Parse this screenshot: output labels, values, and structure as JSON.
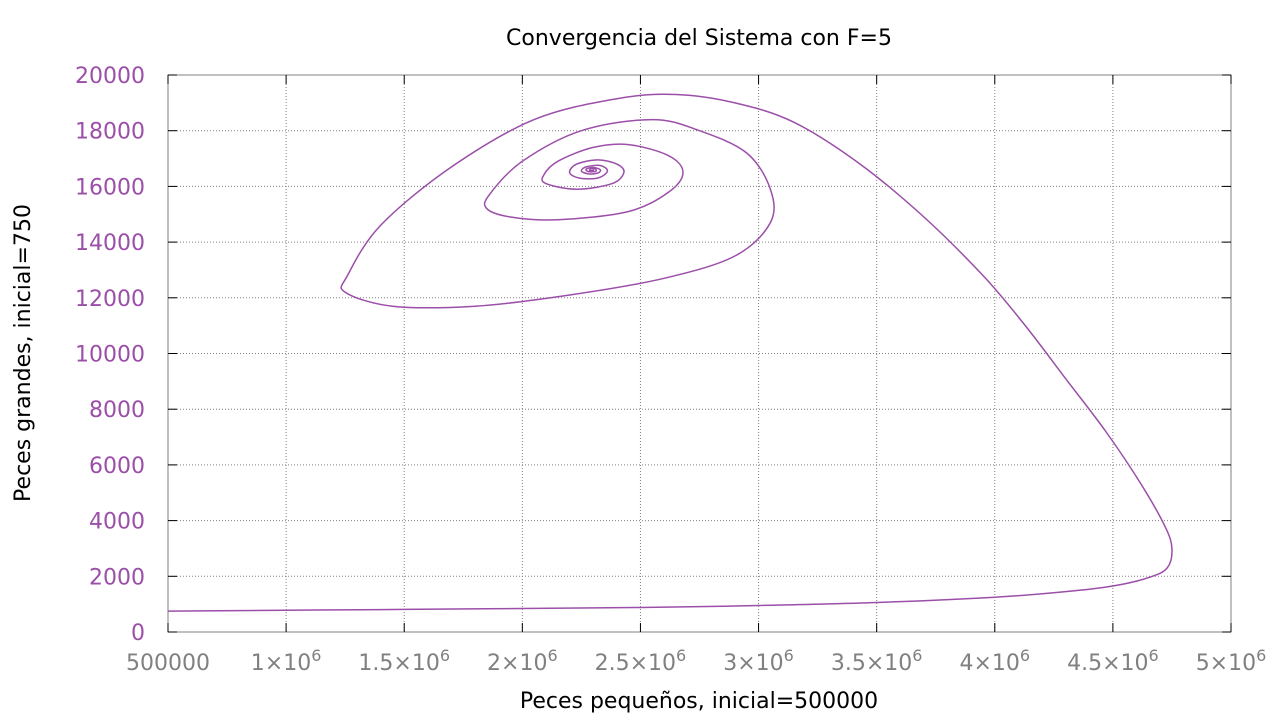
{
  "colors": {
    "series": "#9b4fa8",
    "ytick": "#9b4fa8",
    "xtick": "#808080",
    "grid": "#808080",
    "axis": "#000000"
  },
  "chart_data": {
    "type": "line",
    "title": "Convergencia del Sistema con F=5",
    "xlabel": "Peces pequeños, inicial=500000",
    "ylabel": "Peces grandes, inicial=750",
    "xlim": [
      500000,
      5000000
    ],
    "ylim": [
      0,
      20000
    ],
    "grid": true,
    "legend": "none",
    "xticks": [
      {
        "value": 500000,
        "mant": "500000",
        "sup": ""
      },
      {
        "value": 1000000,
        "mant": "1×10",
        "sup": "6"
      },
      {
        "value": 1500000,
        "mant": "1.5×10",
        "sup": "6"
      },
      {
        "value": 2000000,
        "mant": "2×10",
        "sup": "6"
      },
      {
        "value": 2500000,
        "mant": "2.5×10",
        "sup": "6"
      },
      {
        "value": 3000000,
        "mant": "3×10",
        "sup": "6"
      },
      {
        "value": 3500000,
        "mant": "3.5×10",
        "sup": "6"
      },
      {
        "value": 4000000,
        "mant": "4×10",
        "sup": "6"
      },
      {
        "value": 4500000,
        "mant": "4.5×10",
        "sup": "6"
      },
      {
        "value": 5000000,
        "mant": "5×10",
        "sup": "6"
      }
    ],
    "yticks": [
      "0",
      "2000",
      "4000",
      "6000",
      "8000",
      "10000",
      "12000",
      "14000",
      "16000",
      "18000",
      "20000"
    ],
    "series": [
      {
        "points": [
          [
            500000,
            750
          ],
          [
            1500000,
            810
          ],
          [
            2500000,
            880
          ],
          [
            3000000,
            950
          ],
          [
            3500000,
            1060
          ],
          [
            4000000,
            1250
          ],
          [
            4300000,
            1450
          ],
          [
            4500000,
            1650
          ],
          [
            4650000,
            1950
          ],
          [
            4730000,
            2300
          ],
          [
            4750000,
            3000
          ],
          [
            4720000,
            3800
          ],
          [
            4620000,
            5300
          ],
          [
            4470000,
            7200
          ],
          [
            4300000,
            9100
          ],
          [
            4120000,
            11100
          ],
          [
            3950000,
            12800
          ],
          [
            3700000,
            14900
          ],
          [
            3430000,
            16800
          ],
          [
            3150000,
            18300
          ],
          [
            2900000,
            19000
          ],
          [
            2650000,
            19300
          ],
          [
            2400000,
            19150
          ],
          [
            2050000,
            18400
          ],
          [
            1700000,
            16700
          ],
          [
            1400000,
            14600
          ],
          [
            1260000,
            12800
          ],
          [
            1250000,
            12200
          ],
          [
            1450000,
            11700
          ],
          [
            1800000,
            11700
          ],
          [
            2200000,
            12100
          ],
          [
            2600000,
            12700
          ],
          [
            2900000,
            13500
          ],
          [
            3050000,
            14700
          ],
          [
            3050000,
            15900
          ],
          [
            2950000,
            17200
          ],
          [
            2750000,
            18000
          ],
          [
            2550000,
            18400
          ],
          [
            2250000,
            18000
          ],
          [
            2000000,
            16900
          ],
          [
            1860000,
            15700
          ],
          [
            1850000,
            15200
          ],
          [
            1950000,
            14900
          ],
          [
            2150000,
            14800
          ],
          [
            2450000,
            15100
          ],
          [
            2620000,
            15800
          ],
          [
            2680000,
            16500
          ],
          [
            2620000,
            17100
          ],
          [
            2450000,
            17500
          ],
          [
            2300000,
            17400
          ],
          [
            2150000,
            16900
          ],
          [
            2090000,
            16400
          ],
          [
            2100000,
            16100
          ],
          [
            2230000,
            15900
          ],
          [
            2380000,
            16100
          ],
          [
            2430000,
            16500
          ],
          [
            2400000,
            16800
          ],
          [
            2320000,
            16950
          ],
          [
            2230000,
            16800
          ],
          [
            2200000,
            16500
          ],
          [
            2240000,
            16300
          ],
          [
            2320000,
            16300
          ],
          [
            2360000,
            16550
          ],
          [
            2330000,
            16750
          ],
          [
            2270000,
            16700
          ],
          [
            2250000,
            16550
          ],
          [
            2280000,
            16450
          ],
          [
            2320000,
            16480
          ],
          [
            2330000,
            16600
          ],
          [
            2300000,
            16680
          ],
          [
            2270000,
            16620
          ],
          [
            2280000,
            16530
          ],
          [
            2310000,
            16540
          ],
          [
            2310000,
            16620
          ],
          [
            2290000,
            16630
          ],
          [
            2285000,
            16570
          ],
          [
            2300000,
            16570
          ],
          [
            2302000,
            16600
          ]
        ]
      }
    ]
  }
}
